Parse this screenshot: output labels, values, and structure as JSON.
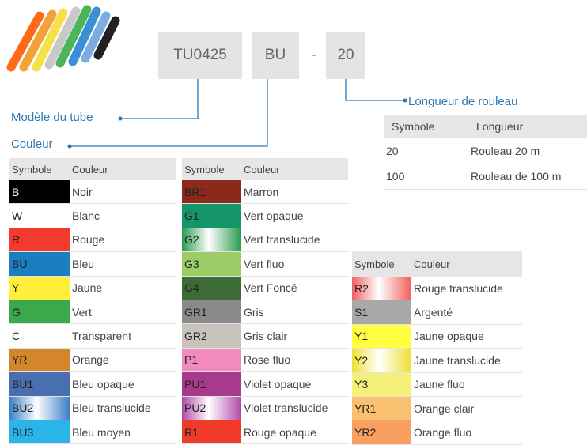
{
  "code": [
    "TU0425",
    "BU",
    "-",
    "20"
  ],
  "labels": {
    "model": "Modèle du tube",
    "color": "Couleur",
    "length": "Longueur de rouleau"
  },
  "length_table": {
    "header": [
      "Symbole",
      "Longueur"
    ],
    "rows": [
      [
        "20",
        "Rouleau  20 m"
      ],
      [
        "100",
        "Rouleau de 100 m"
      ]
    ]
  },
  "color_tables": [
    {
      "header": [
        "Symbole",
        "Couleur"
      ],
      "rows": [
        {
          "symbol": "B",
          "name": "Noir",
          "color": "#000000"
        },
        {
          "symbol": "W",
          "name": "Blanc",
          "color": "#ffffff"
        },
        {
          "symbol": "R",
          "name": "Rouge",
          "color": "#f33a2e"
        },
        {
          "symbol": "BU",
          "name": "Bleu",
          "color": "#1a7fc1"
        },
        {
          "symbol": "Y",
          "name": "Jaune",
          "color": "#ffee3a"
        },
        {
          "symbol": "G",
          "name": "Vert",
          "color": "#3aa94c"
        },
        {
          "symbol": "C",
          "name": "Transparent",
          "color": "#ffffff"
        },
        {
          "symbol": "YR",
          "name": "Orange",
          "color": "#d4872a"
        },
        {
          "symbol": "BU1",
          "name": "Bleu opaque",
          "color": "#4a6fb0"
        },
        {
          "symbol": "BU2",
          "name": "Bleu translucide",
          "color": "#3a80c8",
          "translucent": true
        },
        {
          "symbol": "BU3",
          "name": "Bleu moyen",
          "color": "#29b5e8"
        }
      ]
    },
    {
      "header": [
        "Symbole",
        "Couleur"
      ],
      "rows": [
        {
          "symbol": "BR1",
          "name": "Marron",
          "color": "#8b2a1a"
        },
        {
          "symbol": "G1",
          "name": "Vert opaque",
          "color": "#14956a"
        },
        {
          "symbol": "G2",
          "name": "Vert translucide",
          "color": "#2a9a50",
          "translucent": true
        },
        {
          "symbol": "G3",
          "name": "Vert fluo",
          "color": "#9ccc65"
        },
        {
          "symbol": "G4",
          "name": "Vert Foncé",
          "color": "#3d6b35"
        },
        {
          "symbol": "GR1",
          "name": "Gris",
          "color": "#8a8a8a"
        },
        {
          "symbol": "GR2",
          "name": "Gris clair",
          "color": "#c8c4bc"
        },
        {
          "symbol": "P1",
          "name": "Rose fluo",
          "color": "#f28ac0"
        },
        {
          "symbol": "PU1",
          "name": "Violet opaque",
          "color": "#a83a8c"
        },
        {
          "symbol": "PU2",
          "name": "Violet translucide",
          "color": "#b04aa8",
          "translucent": true
        },
        {
          "symbol": "R1",
          "name": "Rouge opaque",
          "color": "#f23a2a"
        }
      ]
    },
    {
      "header": [
        "Symbole",
        "Couleur"
      ],
      "rows": [
        {
          "symbol": "R2",
          "name": "Rouge translucide",
          "color": "#f06060",
          "translucent": true
        },
        {
          "symbol": "S1",
          "name": "Argenté",
          "color": "#a8a8a8"
        },
        {
          "symbol": "Y1",
          "name": "Jaune opaque",
          "color": "#ffff40"
        },
        {
          "symbol": "Y2",
          "name": "Jaune translucide",
          "color": "#f0e030",
          "translucent": true
        },
        {
          "symbol": "Y3",
          "name": "Jaune fluo",
          "color": "#f5f07a"
        },
        {
          "symbol": "YR1",
          "name": "Orange clair",
          "color": "#f8c070"
        },
        {
          "symbol": "YR2",
          "name": "Orange fluo",
          "color": "#f8a060"
        }
      ]
    }
  ]
}
